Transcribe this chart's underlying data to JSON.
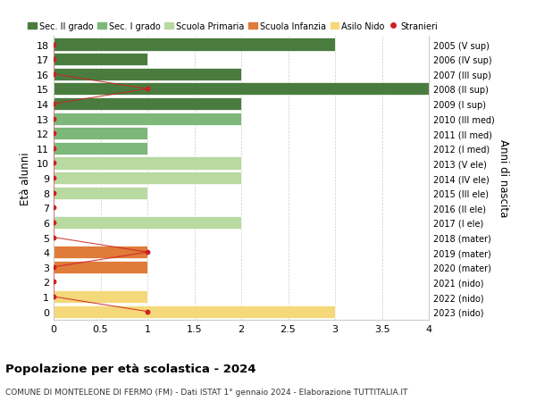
{
  "ages": [
    18,
    17,
    16,
    15,
    14,
    13,
    12,
    11,
    10,
    9,
    8,
    7,
    6,
    5,
    4,
    3,
    2,
    1,
    0
  ],
  "right_labels": [
    "2005 (V sup)",
    "2006 (IV sup)",
    "2007 (III sup)",
    "2008 (II sup)",
    "2009 (I sup)",
    "2010 (III med)",
    "2011 (II med)",
    "2012 (I med)",
    "2013 (V ele)",
    "2014 (IV ele)",
    "2015 (III ele)",
    "2016 (II ele)",
    "2017 (I ele)",
    "2018 (mater)",
    "2019 (mater)",
    "2020 (mater)",
    "2021 (nido)",
    "2022 (nido)",
    "2023 (nido)"
  ],
  "bar_values": [
    3,
    1,
    2,
    4,
    2,
    2,
    1,
    1,
    2,
    2,
    1,
    0,
    2,
    0,
    1,
    1,
    0,
    1,
    3
  ],
  "bar_colors": [
    "#4a7c3f",
    "#4a7c3f",
    "#4a7c3f",
    "#4a7c3f",
    "#4a7c3f",
    "#7db87a",
    "#7db87a",
    "#7db87a",
    "#b8d9a0",
    "#b8d9a0",
    "#b8d9a0",
    "#b8d9a0",
    "#b8d9a0",
    "#e07b39",
    "#e07b39",
    "#e07b39",
    "#f5d87a",
    "#f5d87a",
    "#f5d87a"
  ],
  "stranieri_x": [
    0,
    0,
    0,
    1,
    0,
    0,
    0,
    0,
    0,
    0,
    0,
    0,
    0,
    0,
    1,
    0,
    0,
    0,
    1
  ],
  "title": "Popolazione per età scolastica - 2024",
  "subtitle": "COMUNE DI MONTELEONE DI FERMO (FM) - Dati ISTAT 1° gennaio 2024 - Elaborazione TUTTITALIA.IT",
  "ylabel": "Età alunni",
  "right_ylabel": "Anni di nascita",
  "xlim": [
    0,
    4.0
  ],
  "xticks": [
    0,
    0.5,
    1.0,
    1.5,
    2.0,
    2.5,
    3.0,
    3.5,
    4.0
  ],
  "legend_labels": [
    "Sec. II grado",
    "Sec. I grado",
    "Scuola Primaria",
    "Scuola Infanzia",
    "Asilo Nido",
    "Stranieri"
  ],
  "legend_colors": [
    "#4a7c3f",
    "#7db87a",
    "#b8d9a0",
    "#e07b39",
    "#f5d87a",
    "#cc2222"
  ],
  "stranieri_color": "#cc2222",
  "grid_color": "#cccccc",
  "bar_height": 0.85,
  "figure_bg": "#ffffff"
}
